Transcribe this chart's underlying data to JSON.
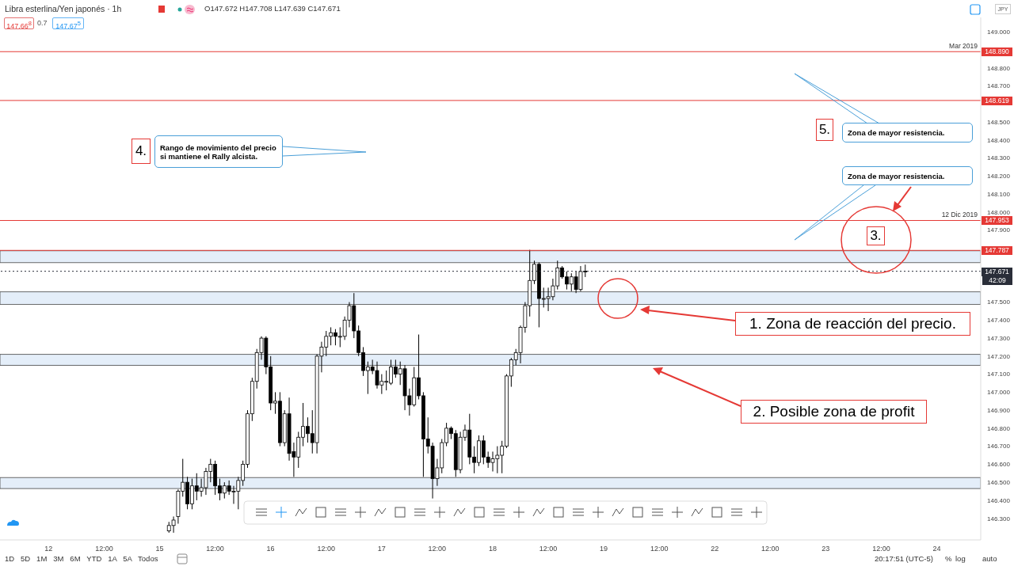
{
  "chart_data": {
    "type": "candlestick",
    "title": "Libra esterlina/Yen japonés · 1h",
    "color": "#000000",
    "categories": [
      null,
      null,
      null,
      null,
      null,
      null,
      null,
      null,
      null,
      null,
      "12",
      null,
      null,
      null,
      null,
      null,
      null,
      null,
      null,
      null,
      null,
      null,
      "12:00",
      null,
      null,
      null,
      null,
      null,
      null,
      null,
      null,
      null,
      null,
      null,
      "15",
      null,
      null,
      null,
      null,
      null,
      null,
      null,
      null,
      null,
      null,
      null,
      "12:00",
      null,
      null,
      null,
      null,
      null,
      null,
      null,
      null,
      null,
      null,
      null,
      "16",
      null,
      null,
      null,
      null,
      null,
      null,
      null,
      null,
      null,
      null,
      null,
      "12:00",
      null,
      null,
      null,
      null,
      null,
      null,
      null,
      null,
      null,
      null,
      null,
      "17",
      null,
      null,
      null,
      null,
      null,
      null,
      null,
      null,
      null,
      null,
      null,
      "12:00",
      null,
      null,
      null,
      null,
      null,
      null,
      null,
      null,
      null,
      null,
      null,
      "18",
      null,
      null,
      null,
      null,
      null,
      null,
      null,
      null,
      null,
      null,
      null,
      "12:00",
      null,
      null,
      null,
      null,
      null,
      null,
      null,
      null,
      null,
      null,
      null,
      "19",
      null,
      null,
      null,
      null,
      null,
      null,
      null,
      null,
      null,
      null,
      null,
      "12:00",
      null,
      null,
      null,
      null,
      null,
      null,
      null,
      null,
      null,
      null,
      null,
      "22",
      null,
      null,
      null,
      null,
      null,
      null,
      null,
      null,
      null,
      null,
      null,
      "12:00",
      null,
      null,
      null,
      null,
      null,
      null,
      null,
      null,
      null,
      null,
      null,
      "23",
      null,
      null,
      null,
      null,
      null,
      null,
      null,
      null,
      null,
      null,
      null,
      "12:00",
      null,
      null,
      null,
      null,
      null,
      null,
      null,
      null,
      null,
      null,
      null,
      "24",
      null,
      null,
      null,
      null,
      null,
      null,
      null,
      null,
      null
    ],
    "ohlc": [
      null,
      null,
      null,
      null,
      null,
      null,
      null,
      null,
      null,
      null,
      null,
      null,
      null,
      null,
      null,
      null,
      null,
      null,
      null,
      null,
      null,
      null,
      null,
      null,
      null,
      null,
      null,
      null,
      null,
      null,
      null,
      null,
      null,
      null,
      null,
      null,
      [
        146.23,
        146.28,
        146.22,
        146.26
      ],
      [
        146.26,
        146.31,
        146.22,
        146.29
      ],
      [
        146.31,
        146.46,
        146.27,
        146.45
      ],
      [
        146.45,
        146.63,
        146.42,
        146.5
      ],
      [
        146.5,
        146.53,
        146.35,
        146.38
      ],
      [
        146.38,
        146.52,
        146.35,
        146.48
      ],
      [
        146.48,
        146.55,
        146.4,
        146.45
      ],
      [
        146.45,
        146.52,
        146.42,
        146.47
      ],
      [
        146.47,
        146.58,
        146.43,
        146.56
      ],
      [
        146.56,
        146.63,
        146.5,
        146.6
      ],
      [
        146.6,
        146.62,
        146.43,
        146.48
      ],
      [
        146.48,
        146.52,
        146.4,
        146.44
      ],
      [
        146.44,
        146.5,
        146.41,
        146.48
      ],
      [
        146.48,
        146.51,
        146.43,
        146.45
      ],
      [
        146.45,
        146.48,
        146.38,
        146.45
      ],
      [
        146.45,
        146.53,
        146.35,
        146.51
      ],
      [
        146.51,
        146.62,
        146.48,
        146.6
      ],
      [
        146.6,
        146.9,
        146.58,
        146.88
      ],
      [
        146.88,
        147.08,
        146.84,
        147.06
      ],
      [
        147.06,
        147.24,
        147.02,
        147.22
      ],
      [
        147.22,
        147.31,
        147.18,
        147.3
      ],
      [
        147.3,
        147.31,
        147.1,
        147.14
      ],
      [
        147.14,
        147.2,
        146.9,
        146.94
      ],
      [
        146.94,
        147.0,
        146.88,
        146.95
      ],
      [
        146.95,
        147.0,
        146.7,
        146.72
      ],
      [
        146.72,
        146.9,
        146.7,
        146.88
      ],
      [
        146.88,
        146.97,
        146.62,
        146.66
      ],
      [
        146.67,
        146.72,
        146.53,
        146.64
      ],
      [
        146.64,
        146.78,
        146.58,
        146.75
      ],
      [
        146.75,
        146.94,
        146.7,
        146.81
      ],
      [
        146.81,
        146.86,
        146.72,
        146.77
      ],
      [
        146.77,
        146.9,
        146.66,
        146.72
      ],
      [
        146.72,
        147.21,
        146.66,
        147.2
      ],
      [
        147.2,
        147.28,
        147.11,
        147.25
      ],
      [
        147.25,
        147.34,
        147.2,
        147.31
      ],
      [
        147.31,
        147.36,
        147.26,
        147.33
      ],
      [
        147.33,
        147.35,
        147.26,
        147.31
      ],
      [
        147.31,
        147.36,
        147.25,
        147.31
      ],
      [
        147.31,
        147.42,
        147.29,
        147.4
      ],
      [
        147.4,
        147.5,
        147.36,
        147.48
      ],
      [
        147.48,
        147.55,
        147.3,
        147.34
      ],
      [
        147.34,
        147.37,
        147.2,
        147.22
      ],
      [
        147.22,
        147.25,
        147.09,
        147.12
      ],
      [
        147.12,
        147.17,
        146.99,
        147.14
      ],
      [
        147.14,
        147.18,
        147.1,
        147.12
      ],
      [
        147.12,
        147.17,
        147.02,
        147.04
      ],
      [
        147.04,
        147.1,
        146.99,
        147.06
      ],
      [
        147.06,
        147.12,
        147.01,
        147.06
      ],
      [
        147.05,
        147.18,
        147.04,
        147.14
      ],
      [
        147.14,
        147.18,
        147.08,
        147.1
      ],
      [
        147.1,
        147.17,
        147.04,
        147.13
      ],
      [
        147.13,
        147.15,
        146.9,
        146.98
      ],
      [
        146.98,
        147.02,
        146.87,
        146.93
      ],
      [
        146.93,
        147.14,
        146.92,
        147.08
      ],
      [
        147.08,
        147.32,
        146.96,
        146.98
      ],
      [
        146.98,
        147.0,
        146.53,
        146.74
      ],
      [
        146.74,
        146.86,
        146.66,
        146.7
      ],
      [
        146.7,
        146.72,
        146.41,
        146.52
      ],
      [
        146.52,
        146.63,
        146.48,
        146.58
      ],
      [
        146.58,
        146.74,
        146.55,
        146.72
      ],
      [
        146.72,
        146.83,
        146.7,
        146.8
      ],
      [
        146.8,
        146.81,
        146.74,
        146.77
      ],
      [
        146.77,
        146.79,
        146.53,
        146.57
      ],
      [
        146.57,
        146.78,
        146.55,
        146.75
      ],
      [
        146.75,
        146.82,
        146.73,
        146.79
      ],
      [
        146.79,
        146.88,
        146.6,
        146.64
      ],
      [
        146.64,
        146.7,
        146.55,
        146.61
      ],
      [
        146.61,
        146.76,
        146.59,
        146.73
      ],
      [
        146.73,
        146.76,
        146.6,
        146.64
      ],
      [
        146.64,
        146.67,
        146.58,
        146.61
      ],
      [
        146.61,
        146.67,
        146.56,
        146.63
      ],
      [
        146.63,
        146.7,
        146.55,
        146.65
      ],
      [
        146.65,
        146.73,
        146.55,
        146.7
      ],
      [
        146.7,
        147.1,
        146.69,
        147.09
      ],
      [
        147.09,
        147.19,
        147.03,
        147.18
      ],
      [
        147.18,
        147.24,
        147.15,
        147.22
      ],
      [
        147.22,
        147.37,
        147.16,
        147.36
      ],
      [
        147.36,
        147.5,
        147.33,
        147.48
      ],
      [
        147.48,
        147.79,
        147.42,
        147.62
      ],
      [
        147.62,
        147.73,
        147.6,
        147.71
      ],
      [
        147.71,
        147.72,
        147.36,
        147.52
      ],
      [
        147.52,
        147.58,
        147.47,
        147.52
      ],
      [
        147.52,
        147.58,
        147.45,
        147.53
      ],
      [
        147.53,
        147.63,
        147.51,
        147.59
      ],
      [
        147.59,
        147.73,
        147.57,
        147.69
      ],
      [
        147.69,
        147.7,
        147.63,
        147.64
      ],
      [
        147.64,
        147.67,
        147.57,
        147.6
      ],
      [
        147.6,
        147.66,
        147.56,
        147.64
      ],
      [
        147.64,
        147.67,
        147.55,
        147.57
      ],
      [
        147.57,
        147.7,
        147.56,
        147.67
      ],
      [
        147.672,
        147.708,
        147.639,
        147.671
      ],
      null,
      null,
      null,
      null,
      null,
      null,
      null,
      null,
      null,
      null,
      null,
      null,
      null,
      null,
      null,
      null,
      null,
      null,
      null,
      null,
      null,
      null,
      null,
      null,
      null,
      null,
      null,
      null,
      null,
      null,
      null,
      null,
      null,
      null,
      null,
      null,
      null,
      null,
      null,
      null,
      null,
      null,
      null,
      null,
      null,
      null,
      null,
      null,
      null,
      null,
      null,
      null,
      null,
      null,
      null,
      null,
      null,
      null,
      null,
      null,
      null,
      null,
      null,
      null,
      null,
      null,
      null,
      null,
      null,
      null,
      null,
      null,
      null,
      null,
      null,
      null,
      null,
      null,
      null,
      null,
      null,
      null,
      null,
      null,
      null
    ],
    "ylim": [
      146.18,
      149.08
    ],
    "yticks": [
      {
        "value": 146.3,
        "label": "146.300"
      },
      {
        "value": 146.4,
        "label": "146.400"
      },
      {
        "value": 146.5,
        "label": "146.500"
      },
      {
        "value": 146.6,
        "label": "146.600"
      },
      {
        "value": 146.7,
        "label": "146.700"
      },
      {
        "value": 146.8,
        "label": "146.800"
      },
      {
        "value": 146.9,
        "label": "146.900"
      },
      {
        "value": 147.0,
        "label": "147.000"
      },
      {
        "value": 147.1,
        "label": "147.100"
      },
      {
        "value": 147.2,
        "label": "147.200"
      },
      {
        "value": 147.3,
        "label": "147.300"
      },
      {
        "value": 147.4,
        "label": "147.400"
      },
      {
        "value": 147.5,
        "label": "147.500"
      },
      {
        "value": 147.9,
        "label": "147.900"
      },
      {
        "value": 148.0,
        "label": "148.000"
      },
      {
        "value": 148.1,
        "label": "148.100"
      },
      {
        "value": 148.2,
        "label": "148.200"
      },
      {
        "value": 148.3,
        "label": "148.300"
      },
      {
        "value": 148.4,
        "label": "148.400"
      },
      {
        "value": 148.5,
        "label": "148.500"
      },
      {
        "value": 148.7,
        "label": "148.700"
      },
      {
        "value": 148.8,
        "label": "148.800"
      },
      {
        "value": 149.0,
        "label": "149.000"
      }
    ],
    "ref_lines": [
      {
        "axis": "y",
        "value": 148.89,
        "label": "Mar 2019",
        "color": "#e53935"
      },
      {
        "axis": "y",
        "value": 148.619,
        "color": "#e53935"
      },
      {
        "axis": "y",
        "value": 147.953,
        "label": "12 Dic 2019",
        "color": "#e53935"
      },
      {
        "axis": "y",
        "value": 147.787,
        "color": "#e53935"
      },
      {
        "axis": "y",
        "value": 147.671,
        "color": "#2a2e39",
        "line_style": "dotted"
      }
    ],
    "bands": [
      {
        "axis": "y",
        "from": 147.719,
        "to": 147.785,
        "color": "#dbe8f7"
      },
      {
        "axis": "y",
        "from": 147.487,
        "to": 147.557,
        "color": "#dbe8f7"
      },
      {
        "axis": "y",
        "from": 147.149,
        "to": 147.21,
        "color": "#dbe8f7"
      },
      {
        "axis": "y",
        "from": 146.465,
        "to": 146.526,
        "color": "#dbe8f7"
      }
    ],
    "annotations": [
      "4.",
      "Rango de movimiento del precio si mantiene el Rally alcista.",
      "5.",
      "Zona de mayor resistencia.",
      "Zona de mayor resistencia.",
      "3.",
      "1. Zona de reacción del precio.",
      "2. Posible zona de profit",
      "O147.672 H147.708 L147.639 C147.671",
      "147.66$^{8}$",
      "0.7",
      "147.67$^{5}$",
      "42:09",
      "1D   5D   1M   3M   6M   YTD   1A   5A   Todos",
      "20:17:51 (UTC-5)",
      "%",
      "log",
      "auto",
      "JPY",
      "148.890",
      "148.619",
      "147.953",
      "147.787",
      "147.671"
    ]
  }
}
